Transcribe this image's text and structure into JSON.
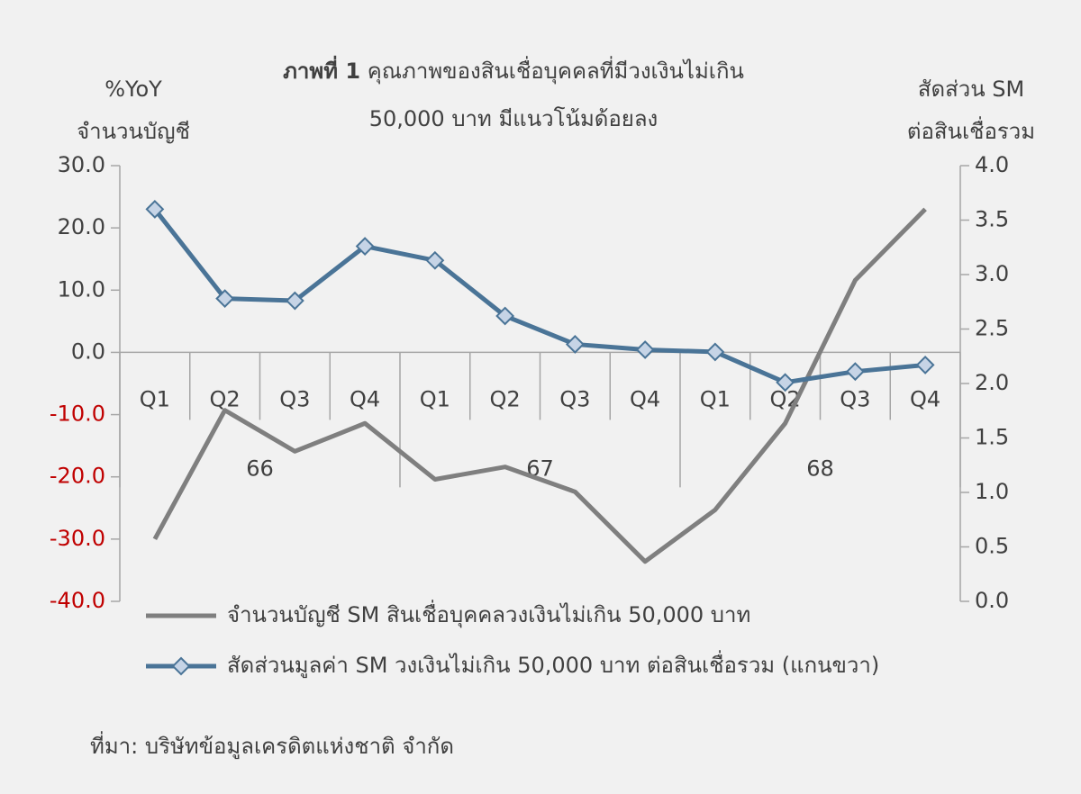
{
  "chart_data": {
    "type": "line",
    "title_prefix": "ภาพที่ 1",
    "title": [
      "คุณภาพของสินเชื่อบุคคลที่มีวงเงินไม่เกิน",
      "50,000 บาท มีแนวโน้มด้อยลง"
    ],
    "y_label": [
      "%YoY",
      "จำนวนบัญชี"
    ],
    "y2_label": [
      "สัดส่วน SM",
      "ต่อสินเชื่อรวม"
    ],
    "source": "ที่มา: บริษัทข้อมูลเครดิตแห่งชาติ จำกัด",
    "groups": [
      {
        "name": "66",
        "categories": [
          "Q1",
          "Q2",
          "Q3",
          "Q4"
        ]
      },
      {
        "name": "67",
        "categories": [
          "Q1",
          "Q2",
          "Q3",
          "Q4"
        ]
      },
      {
        "name": "68",
        "categories": [
          "Q1",
          "Q2",
          "Q3",
          "Q4"
        ]
      }
    ],
    "series": [
      {
        "name": "จำนวนบัญชี SM สินเชื่อบุคคลวงเงินไม่เกิน 50,000 บาท",
        "color": "#7f7f7f",
        "values": [
          -30.0,
          -9.3,
          -15.9,
          -11.4,
          -20.4,
          -18.4,
          -22.4,
          -33.6,
          -25.3,
          -11.4,
          11.6,
          23.0
        ]
      },
      {
        "name": "สัดส่วนมูลค่า SM วงเงินไม่เกิน 50,000 บาท ต่อสินเชื่อรวม (แกนขวา)",
        "color": "#4a7497",
        "marker": "diamond",
        "marker_fill": "#c6d4e6",
        "axis": "y2",
        "values": [
          3.6,
          2.78,
          2.76,
          3.26,
          3.13,
          2.62,
          2.36,
          2.31,
          2.29,
          2.01,
          2.11,
          2.17
        ]
      }
    ],
    "ylim": [
      -40,
      30
    ],
    "yticks": [
      {
        "value": -40,
        "label": "-40.0"
      },
      {
        "value": -30,
        "label": "-30.0"
      },
      {
        "value": -20,
        "label": "-20.0"
      },
      {
        "value": -10,
        "label": "-10.0"
      },
      {
        "value": 0,
        "label": "0.0"
      },
      {
        "value": 10,
        "label": "10.0"
      },
      {
        "value": 20,
        "label": "20.0"
      },
      {
        "value": 30,
        "label": "30.0"
      }
    ],
    "y2lim": [
      0,
      4
    ],
    "y2ticks": [
      {
        "value": 0,
        "label": "0.0"
      },
      {
        "value": 0.5,
        "label": "0.5"
      },
      {
        "value": 1,
        "label": "1.0"
      },
      {
        "value": 1.5,
        "label": "1.5"
      },
      {
        "value": 2,
        "label": "2.0"
      },
      {
        "value": 2.5,
        "label": "2.5"
      },
      {
        "value": 3,
        "label": "3.0"
      },
      {
        "value": 3.5,
        "label": "3.5"
      },
      {
        "value": 4,
        "label": "4.0"
      }
    ],
    "negative_tick_color": "#c00000",
    "grid": false
  }
}
